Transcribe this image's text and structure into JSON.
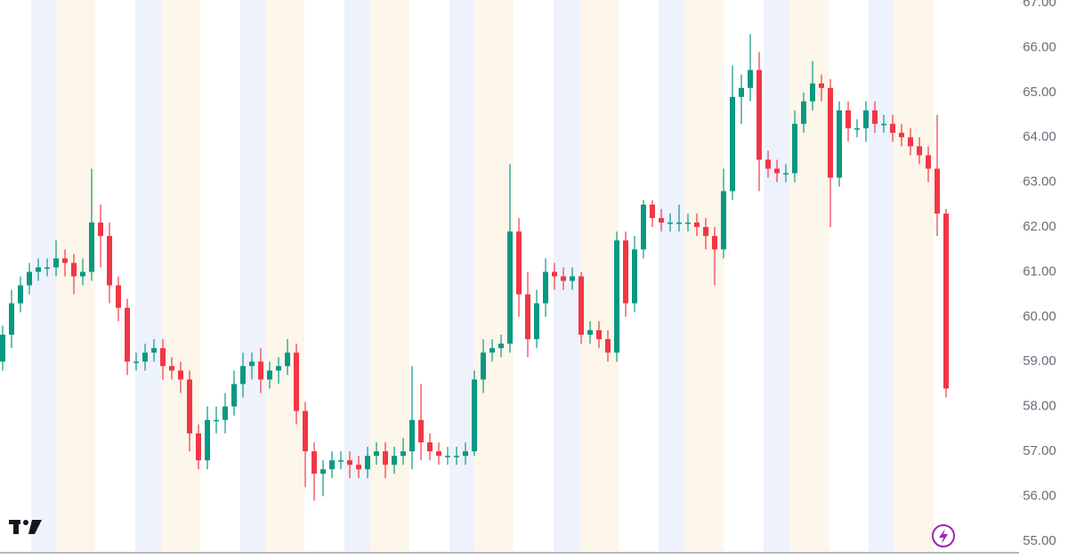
{
  "chart_data": {
    "type": "candlestick",
    "up_color": "#089981",
    "down_color": "#f23645",
    "ylim": [
      54.6,
      67.06
    ],
    "yticks": [
      {
        "value": 55,
        "label": "55.00"
      },
      {
        "value": 56,
        "label": "56.00"
      },
      {
        "value": 57,
        "label": "57.00"
      },
      {
        "value": 58,
        "label": "58.00"
      },
      {
        "value": 59,
        "label": "59.00"
      },
      {
        "value": 60,
        "label": "60.00"
      },
      {
        "value": 61,
        "label": "61.00"
      },
      {
        "value": 62,
        "label": "62.00"
      },
      {
        "value": 63,
        "label": "63.00"
      },
      {
        "value": 64,
        "label": "64.00"
      },
      {
        "value": 65,
        "label": "65.00"
      },
      {
        "value": 66,
        "label": "66.00"
      },
      {
        "value": 67,
        "label": "67.00"
      }
    ],
    "open": [
      59.0,
      59.6,
      60.3,
      60.7,
      61.0,
      61.1,
      61.1,
      61.3,
      61.2,
      60.9,
      61.0,
      62.1,
      61.8,
      60.7,
      60.2,
      59.0,
      59.0,
      59.2,
      59.3,
      58.9,
      58.8,
      58.6,
      57.4,
      56.8,
      57.7,
      57.7,
      58.0,
      58.5,
      58.9,
      59.0,
      58.6,
      58.8,
      58.9,
      59.2,
      57.9,
      57.0,
      56.5,
      56.6,
      56.8,
      56.8,
      56.7,
      56.6,
      56.9,
      57.0,
      56.7,
      56.9,
      57.0,
      57.7,
      57.2,
      57.0,
      56.9,
      56.9,
      56.9,
      57.0,
      58.6,
      59.2,
      59.3,
      59.4,
      61.9,
      60.5,
      59.5,
      60.3,
      61.0,
      60.9,
      60.8,
      60.9,
      59.6,
      59.7,
      59.5,
      59.2,
      61.7,
      60.3,
      61.5,
      62.5,
      62.2,
      62.1,
      62.1,
      62.1,
      62.1,
      62.0,
      61.8,
      61.5,
      62.8,
      64.9,
      65.1,
      65.5,
      63.5,
      63.3,
      63.2,
      63.2,
      64.3,
      64.8,
      65.2,
      65.1,
      63.1,
      64.6,
      64.2,
      64.2,
      64.6,
      64.3,
      64.3,
      64.1,
      64.0,
      63.8,
      63.6,
      63.3,
      62.3
    ],
    "high": [
      59.8,
      60.6,
      60.9,
      61.2,
      61.3,
      61.3,
      61.7,
      61.5,
      61.4,
      61.3,
      63.3,
      62.5,
      62.1,
      60.9,
      60.4,
      59.2,
      59.4,
      59.5,
      59.5,
      59.1,
      59.0,
      58.8,
      57.6,
      58.0,
      58.0,
      58.3,
      58.8,
      59.2,
      59.2,
      59.3,
      59.0,
      59.1,
      59.5,
      59.4,
      58.1,
      57.2,
      56.8,
      57.0,
      57.0,
      57.0,
      56.9,
      57.1,
      57.2,
      57.2,
      57.1,
      57.3,
      58.9,
      58.5,
      57.4,
      57.2,
      57.1,
      57.1,
      57.2,
      58.8,
      59.5,
      59.5,
      59.6,
      63.4,
      62.2,
      61.0,
      60.6,
      61.3,
      61.2,
      61.1,
      61.1,
      61.0,
      59.9,
      59.9,
      59.7,
      61.9,
      61.9,
      61.8,
      62.6,
      62.6,
      62.4,
      62.3,
      62.5,
      62.3,
      62.3,
      62.2,
      62.0,
      63.3,
      65.6,
      65.4,
      66.3,
      65.9,
      63.7,
      63.5,
      63.4,
      64.6,
      65.0,
      65.7,
      65.4,
      65.3,
      64.8,
      64.8,
      64.4,
      64.8,
      64.8,
      64.5,
      64.5,
      64.3,
      64.2,
      64.0,
      63.8,
      64.5,
      62.4
    ],
    "low": [
      58.8,
      59.3,
      60.1,
      60.5,
      60.8,
      60.9,
      60.9,
      60.9,
      60.5,
      60.7,
      60.8,
      61.1,
      60.3,
      59.9,
      58.7,
      58.8,
      58.8,
      59.0,
      58.6,
      58.6,
      58.3,
      57.0,
      56.6,
      56.6,
      57.4,
      57.4,
      57.8,
      58.2,
      58.6,
      58.3,
      58.4,
      58.5,
      58.7,
      57.6,
      56.2,
      55.9,
      56.0,
      56.4,
      56.6,
      56.4,
      56.4,
      56.4,
      56.7,
      56.4,
      56.5,
      56.7,
      56.6,
      56.8,
      56.8,
      56.7,
      56.7,
      56.7,
      56.7,
      56.9,
      58.3,
      59.0,
      59.1,
      59.2,
      60.0,
      59.1,
      59.3,
      60.0,
      60.6,
      60.6,
      60.6,
      59.4,
      59.4,
      59.3,
      59.0,
      59.0,
      60.0,
      60.1,
      61.3,
      62.0,
      61.9,
      61.9,
      61.9,
      61.9,
      61.8,
      61.5,
      60.7,
      61.3,
      62.6,
      64.3,
      64.8,
      62.8,
      63.1,
      63.0,
      63.0,
      63.0,
      64.1,
      64.6,
      64.8,
      62.0,
      62.9,
      63.9,
      64.0,
      63.9,
      64.1,
      64.1,
      63.9,
      63.8,
      63.6,
      63.4,
      63.0,
      61.8,
      58.2
    ],
    "close": [
      59.6,
      60.3,
      60.7,
      61.0,
      61.1,
      61.1,
      61.3,
      61.2,
      60.9,
      61.0,
      62.1,
      61.8,
      60.7,
      60.2,
      59.0,
      59.0,
      59.2,
      59.3,
      58.9,
      58.8,
      58.6,
      57.4,
      56.8,
      57.7,
      57.7,
      58.0,
      58.5,
      58.9,
      59.0,
      58.6,
      58.8,
      58.9,
      59.2,
      57.9,
      57.0,
      56.5,
      56.6,
      56.8,
      56.8,
      56.7,
      56.6,
      56.9,
      57.0,
      56.7,
      56.9,
      57.0,
      57.7,
      57.2,
      57.0,
      56.9,
      56.9,
      56.9,
      57.0,
      58.6,
      59.2,
      59.3,
      59.4,
      61.9,
      60.5,
      59.5,
      60.3,
      61.0,
      60.9,
      60.8,
      60.9,
      59.6,
      59.7,
      59.5,
      59.2,
      61.7,
      60.3,
      61.5,
      62.5,
      62.2,
      62.1,
      62.1,
      62.1,
      62.1,
      62.0,
      61.8,
      61.5,
      62.8,
      64.9,
      65.1,
      65.5,
      63.5,
      63.3,
      63.2,
      63.2,
      64.3,
      64.8,
      65.2,
      65.1,
      63.1,
      64.6,
      64.2,
      64.2,
      64.6,
      64.3,
      64.3,
      64.1,
      64.0,
      63.8,
      63.6,
      63.3,
      62.3,
      58.4
    ]
  }
}
